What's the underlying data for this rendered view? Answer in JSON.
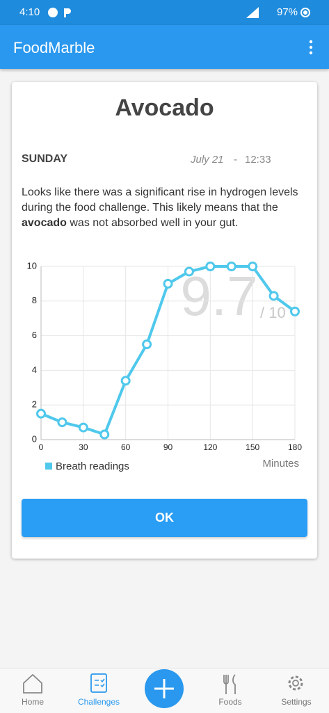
{
  "status_bar": {
    "time": "4:10",
    "battery": "97%"
  },
  "app_bar": {
    "title": "FoodMarble"
  },
  "card": {
    "title": "Avocado",
    "day": "SUNDAY",
    "date": "July 21",
    "separator": "-",
    "time": "12:33",
    "message_before": "Looks like there was a significant rise in hydrogen levels during the food challenge. This likely means that the ",
    "message_bold": "avocado",
    "message_after": " was not absorbed well in your gut.",
    "button": "OK"
  },
  "chart_data": {
    "type": "line",
    "x": [
      0,
      15,
      30,
      45,
      60,
      75,
      90,
      105,
      120,
      135,
      150,
      165,
      180
    ],
    "series": [
      {
        "name": "Breath readings",
        "color": "#4fc8ec",
        "values": [
          1.5,
          1.0,
          0.7,
          0.3,
          3.4,
          5.5,
          9.0,
          9.7,
          10,
          10,
          10,
          8.3,
          7.4
        ]
      }
    ],
    "xlim": [
      0,
      180
    ],
    "xticks": [
      0,
      30,
      60,
      90,
      120,
      150,
      180
    ],
    "ylim": [
      0,
      10
    ],
    "yticks": [
      0,
      2,
      4,
      6,
      8,
      10
    ],
    "grid": true,
    "x_label": "Minutes",
    "score": 9.7,
    "score_suffix": "/ 10"
  },
  "nav": [
    {
      "label": "Home"
    },
    {
      "label": "Challenges"
    },
    {
      "label": "Foods"
    },
    {
      "label": "Settings"
    }
  ]
}
